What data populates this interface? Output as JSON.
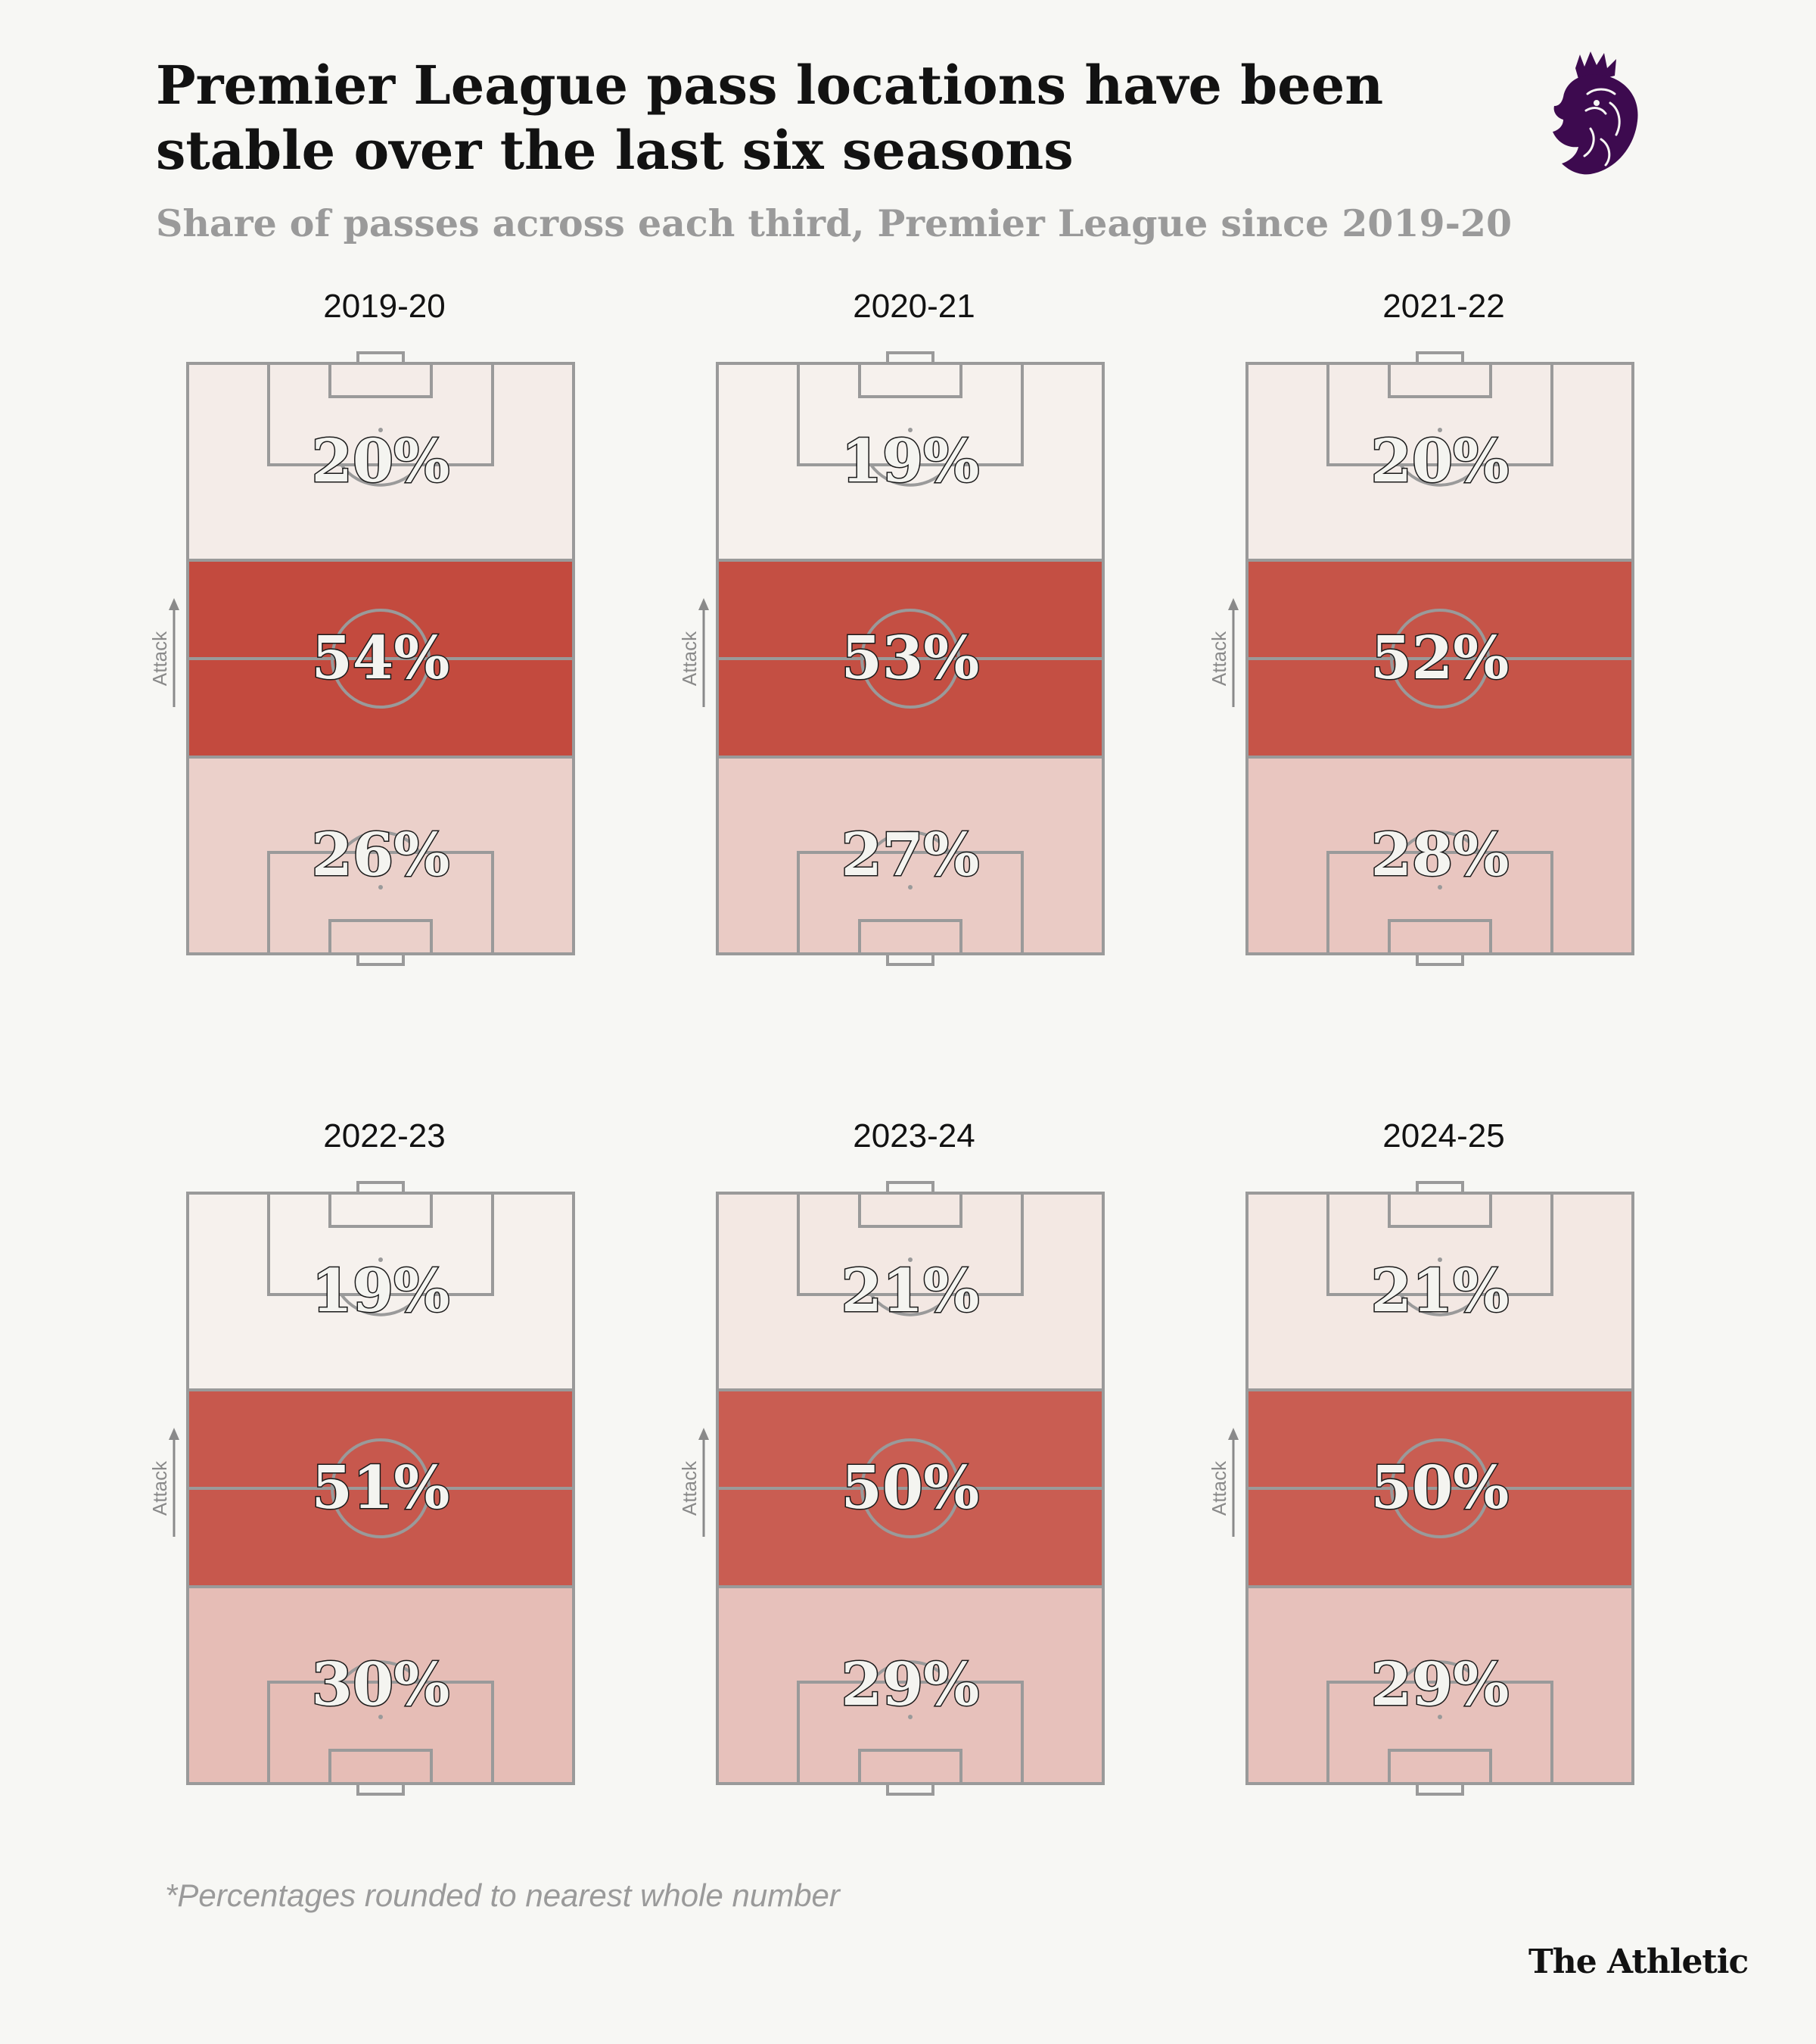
{
  "header": {
    "title": "Premier League pass locations have been stable over the last six seasons",
    "subtitle": "Share of passes across each third, Premier League since 2019-20"
  },
  "logo": {
    "icon": "premier-league-lion-icon",
    "color": "#3d0a4f"
  },
  "attack_label": "Attack",
  "footnote": "*Percentages rounded to nearest whole number",
  "brand": "The Athletic",
  "colors": {
    "background": "#f7f7f4",
    "pitch_lines": "#9a9a9a",
    "scale_low": "#f7f6f2",
    "scale_high": "#c34a3e"
  },
  "chart_data": {
    "type": "heatmap",
    "title": "Premier League pass locations have been stable over the last six seasons",
    "subtitle": "Share of passes across each third, Premier League since 2019-20",
    "unit": "%",
    "thirds": [
      "attacking",
      "middle",
      "defensive"
    ],
    "seasons": [
      {
        "season": "2019-20",
        "attacking": 20,
        "middle": 54,
        "defensive": 26
      },
      {
        "season": "2020-21",
        "attacking": 19,
        "middle": 53,
        "defensive": 27
      },
      {
        "season": "2021-22",
        "attacking": 20,
        "middle": 52,
        "defensive": 28
      },
      {
        "season": "2022-23",
        "attacking": 19,
        "middle": 51,
        "defensive": 30
      },
      {
        "season": "2023-24",
        "attacking": 21,
        "middle": 50,
        "defensive": 29
      },
      {
        "season": "2024-25",
        "attacking": 21,
        "middle": 50,
        "defensive": 29
      }
    ]
  }
}
